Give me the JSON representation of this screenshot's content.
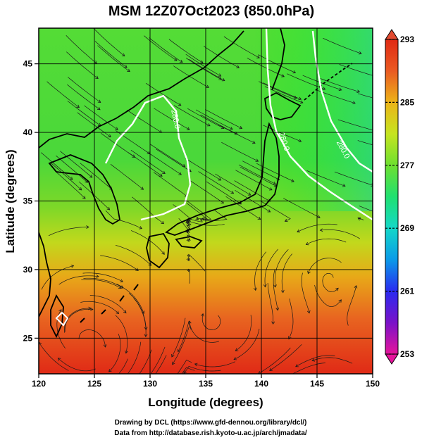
{
  "title": "MSM 12Z07Oct2023 (850.0hPa)",
  "x_axis": {
    "label": "Longitude (degrees)",
    "range": [
      120,
      150
    ],
    "ticks": [
      "120",
      "125",
      "130",
      "135",
      "140",
      "145",
      "150"
    ]
  },
  "y_axis": {
    "label": "Latitude  (degrees)",
    "range": [
      22.4,
      47.6
    ],
    "ticks": [
      "25",
      "30",
      "35",
      "40",
      "45"
    ]
  },
  "colorbar": {
    "min": 253,
    "max": 293,
    "ticks": [
      "293",
      "285",
      "277",
      "269",
      "261",
      "253"
    ],
    "colors": [
      "#e6149b",
      "#7a12c8",
      "#2a2af0",
      "#0a9ae8",
      "#14d8c8",
      "#20e070",
      "#6ee030",
      "#c6e420",
      "#ecb418",
      "#ea5a22",
      "#e02a14"
    ]
  },
  "contours": [
    {
      "label": "280.0"
    },
    {
      "label": "280.0"
    },
    {
      "label": "280.0"
    }
  ],
  "credits": {
    "line1": "Drawing by DCL (https://www.gfd-dennou.org/library/dcl/)",
    "line2": "Data from http://database.rish.kyoto-u.ac.jp/arch/jmadata/"
  }
}
